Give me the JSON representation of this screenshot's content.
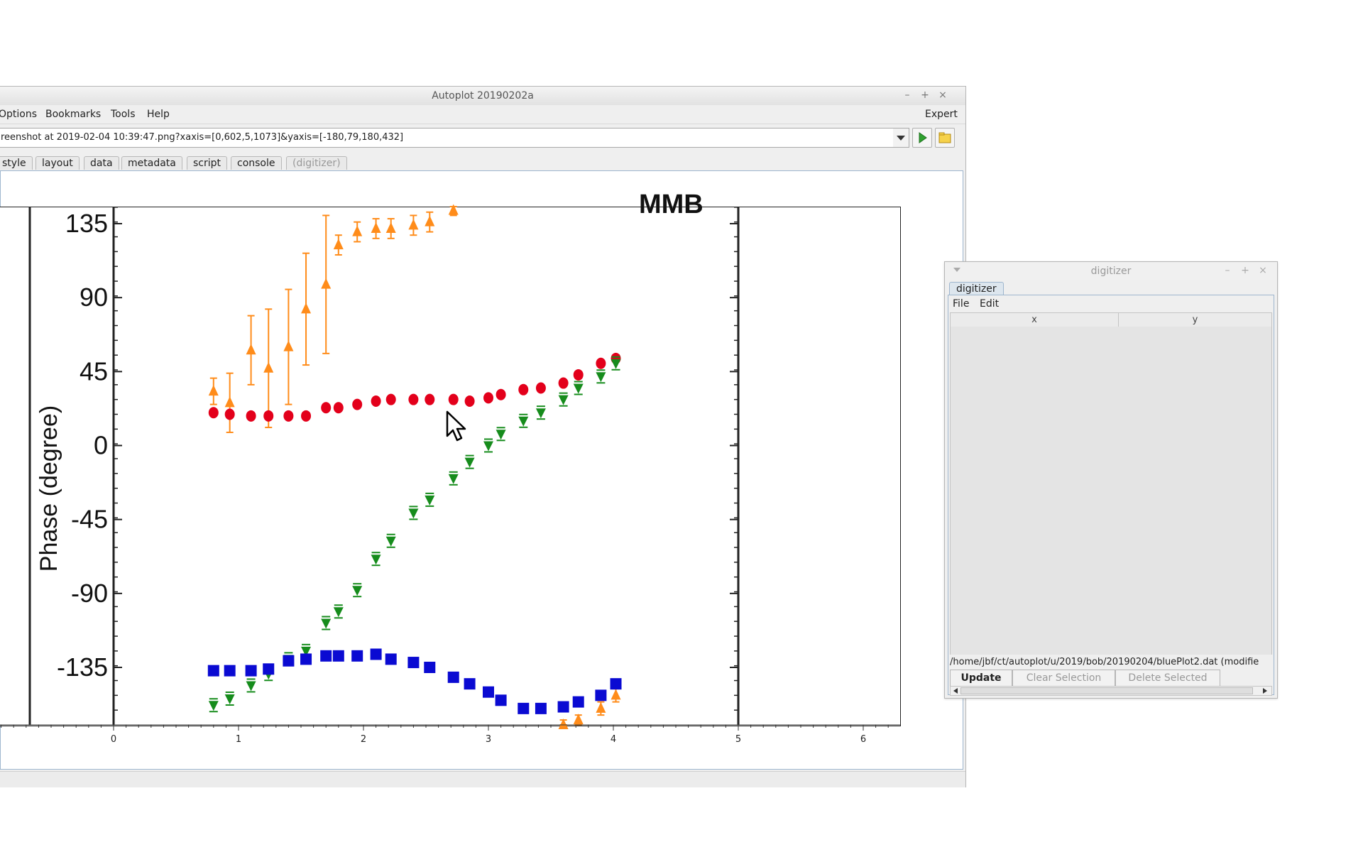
{
  "app": {
    "title": "Autoplot 20190202a",
    "menus": [
      "Options",
      "Bookmarks",
      "Tools",
      "Help"
    ],
    "expert_label": "Expert",
    "uri": "reenshot at 2019-02-04 10:39:47.png?xaxis=[0,602,5,1073]&yaxis=[-180,79,180,432]",
    "tabs": [
      "style",
      "layout",
      "data",
      "metadata",
      "script",
      "console",
      "(digitizer)"
    ],
    "window_controls": [
      "–",
      "+",
      "×"
    ]
  },
  "plot": {
    "ylabel": "Phase (degree)",
    "corner_label": "MMB",
    "x_ticks": [
      "0",
      "1",
      "2",
      "3",
      "4",
      "5",
      "6"
    ],
    "y_ticks": [
      "135",
      "90",
      "45",
      "0",
      "-45",
      "-90",
      "-135"
    ]
  },
  "digitizer": {
    "title": "digitizer",
    "tab": "digitizer",
    "menus": [
      "File",
      "Edit"
    ],
    "columns": [
      "x",
      "y"
    ],
    "file": "/home/jbf/ct/autoplot/u/2019/bob/20190204/bluePlot2.dat (modifie",
    "buttons": {
      "update": "Update",
      "clear": "Clear Selection",
      "delete": "Delete Selected"
    }
  },
  "chart_data": {
    "type": "scatter",
    "title": "",
    "xlabel": "",
    "ylabel": "Phase (degree)",
    "xlim": [
      0,
      5
    ],
    "ylim": [
      -170,
      145
    ],
    "series": [
      {
        "color": "#ff8c1a",
        "marker": "triangle-up",
        "x": [
          0.8,
          0.93,
          1.1,
          1.24,
          1.4,
          1.54,
          1.7,
          1.8,
          1.95,
          2.1,
          2.22,
          2.4,
          2.53,
          2.72,
          3.6,
          3.72,
          3.9,
          4.02
        ],
        "y": [
          33,
          26,
          58,
          47,
          60,
          83,
          98,
          122,
          130,
          132,
          132,
          134,
          136,
          143,
          -170,
          -167,
          -160,
          -152
        ],
        "err": [
          8,
          18,
          21,
          36,
          35,
          34,
          42,
          6,
          6,
          6,
          6,
          6,
          6,
          3,
          3,
          3,
          4,
          4
        ]
      },
      {
        "color": "#e3001b",
        "marker": "circle",
        "x": [
          0.8,
          0.93,
          1.1,
          1.24,
          1.4,
          1.54,
          1.7,
          1.8,
          1.95,
          2.1,
          2.22,
          2.4,
          2.53,
          2.72,
          2.85,
          3.0,
          3.1,
          3.28,
          3.42,
          3.6,
          3.72,
          3.9,
          4.02
        ],
        "y": [
          20,
          19,
          18,
          18,
          18,
          18,
          23,
          23,
          25,
          27,
          28,
          28,
          28,
          28,
          27,
          29,
          31,
          34,
          35,
          38,
          43,
          50,
          53
        ]
      },
      {
        "color": "#168c1c",
        "marker": "triangle-down",
        "x": [
          0.8,
          0.93,
          1.1,
          1.24,
          1.4,
          1.54,
          1.7,
          1.8,
          1.95,
          2.1,
          2.22,
          2.4,
          2.53,
          2.72,
          2.85,
          3.0,
          3.1,
          3.28,
          3.42,
          3.6,
          3.72,
          3.9,
          4.02
        ],
        "y": [
          -158,
          -154,
          -146,
          -139,
          -130,
          -125,
          -108,
          -101,
          -88,
          -69,
          -58,
          -41,
          -33,
          -20,
          -10,
          0,
          7,
          15,
          20,
          28,
          35,
          42,
          50
        ]
      },
      {
        "color": "#0a0ad2",
        "marker": "square",
        "x": [
          0.8,
          0.93,
          1.1,
          1.24,
          1.4,
          1.54,
          1.7,
          1.8,
          1.95,
          2.1,
          2.22,
          2.4,
          2.53,
          2.72,
          2.85,
          3.0,
          3.1,
          3.28,
          3.42,
          3.6,
          3.72,
          3.9,
          4.02
        ],
        "y": [
          -137,
          -137,
          -137,
          -136,
          -131,
          -130,
          -128,
          -128,
          -128,
          -127,
          -130,
          -132,
          -135,
          -141,
          -145,
          -150,
          -155,
          -160,
          -160,
          -159,
          -156,
          -152,
          -145
        ]
      }
    ]
  }
}
